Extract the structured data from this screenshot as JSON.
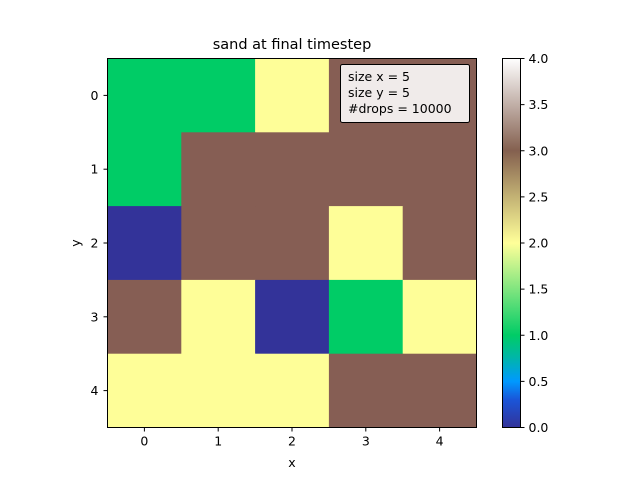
{
  "chart_data": {
    "type": "heatmap",
    "title": "sand at final timestep",
    "xlabel": "x",
    "ylabel": "y",
    "x_categories": [
      "0",
      "1",
      "2",
      "3",
      "4"
    ],
    "y_categories": [
      "0",
      "1",
      "2",
      "3",
      "4"
    ],
    "values": [
      [
        1,
        1,
        2,
        3,
        3
      ],
      [
        1,
        3,
        3,
        3,
        3
      ],
      [
        0,
        3,
        3,
        2,
        3
      ],
      [
        3,
        2,
        0,
        1,
        2
      ],
      [
        2,
        2,
        2,
        3,
        3
      ]
    ],
    "colormap": "terrain",
    "color_levels": {
      "0": "#333399",
      "1": "#00cc66",
      "2": "#fefe98",
      "3": "#865e54"
    },
    "colorbar": {
      "range": [
        0.0,
        4.0
      ],
      "ticks": [
        "0.0",
        "0.5",
        "1.0",
        "1.5",
        "2.0",
        "2.5",
        "3.0",
        "3.5",
        "4.0"
      ]
    },
    "annotation": [
      "size x = 5",
      "size y = 5",
      "#drops = 10000"
    ],
    "grid": false
  }
}
